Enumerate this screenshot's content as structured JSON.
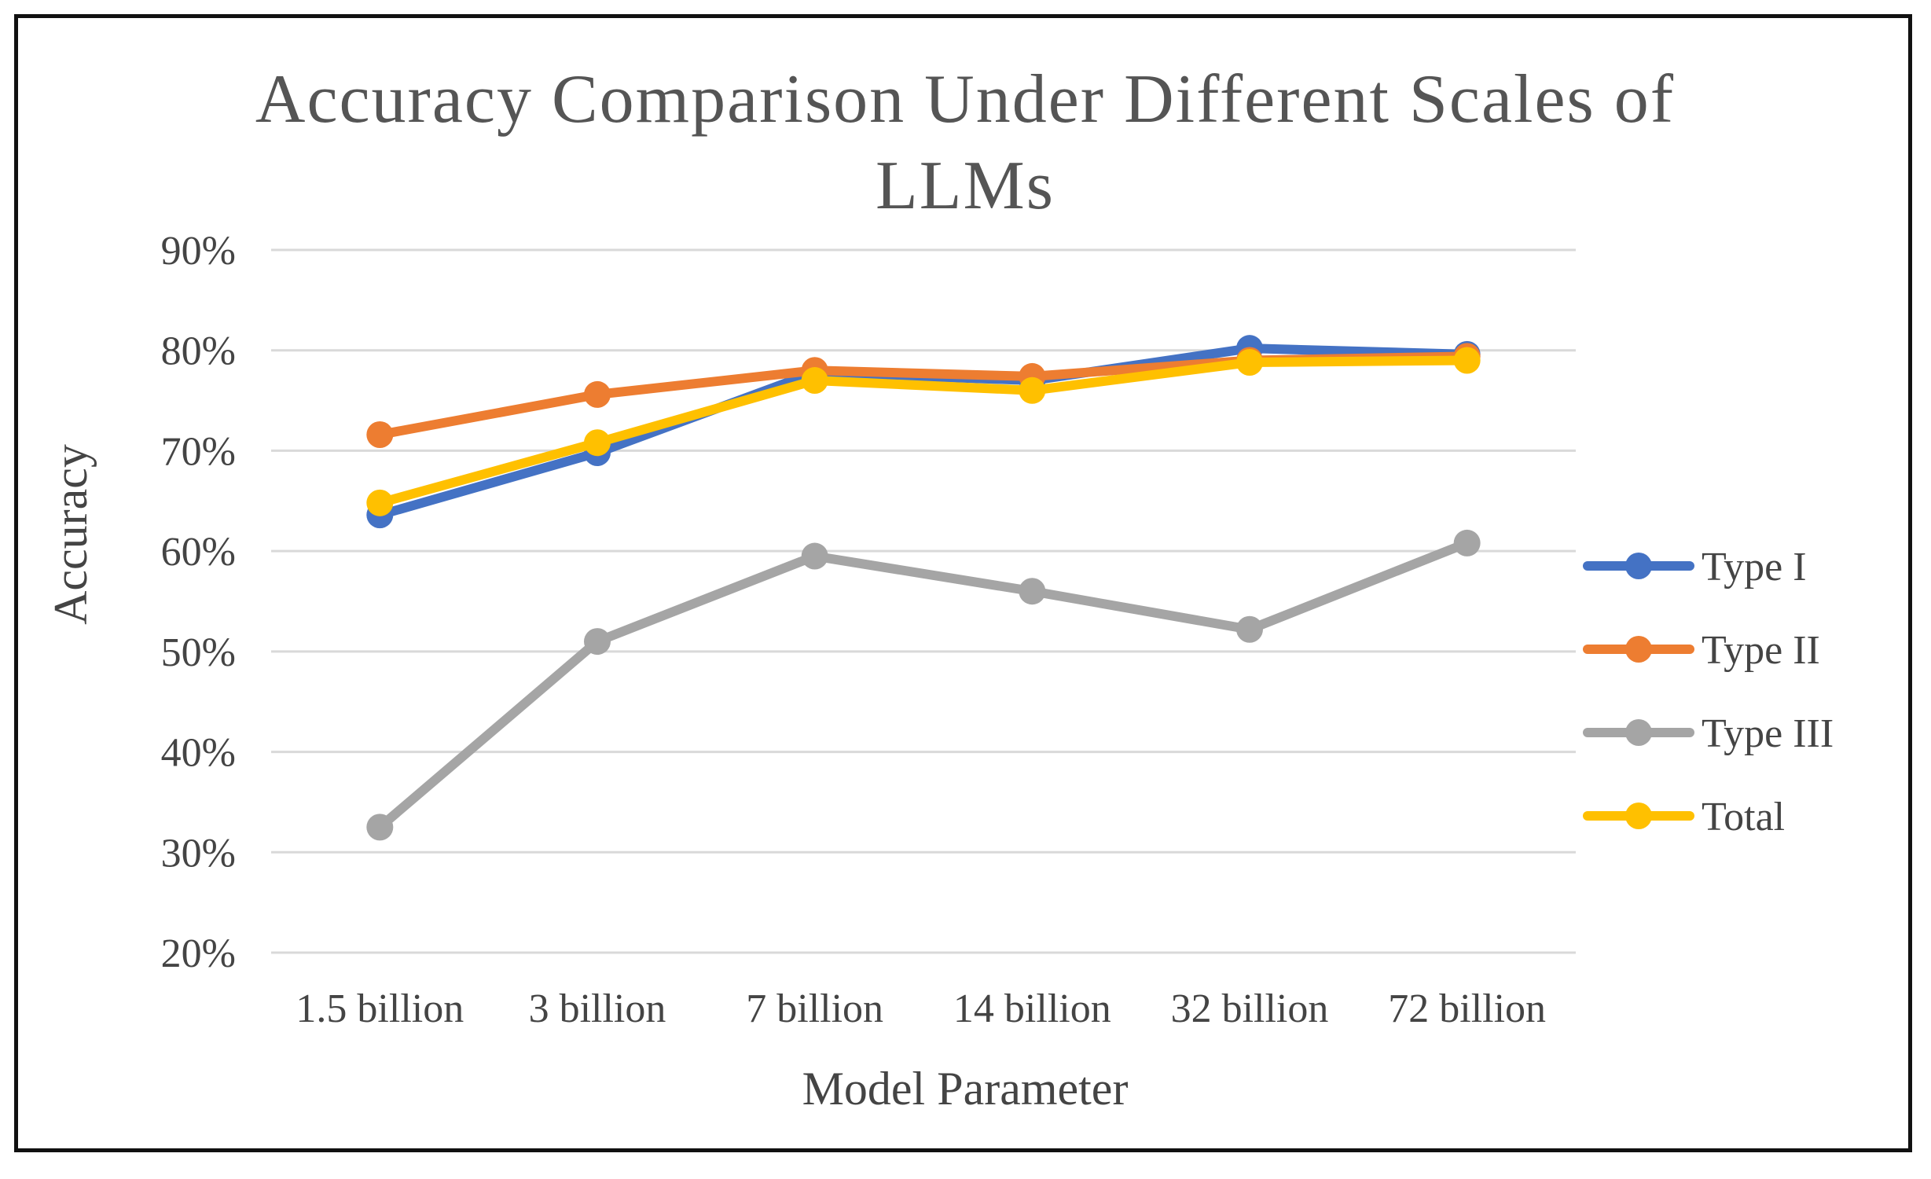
{
  "chart_data": {
    "type": "line",
    "title_lines": [
      "Accuracy  Comparison  Under  Different  Scales  of",
      "LLMs"
    ],
    "xlabel": "Model Parameter",
    "ylabel": "Accuracy",
    "categories": [
      "1.5 billion",
      "3 billion",
      "7 billion",
      "14 billion",
      "32 billion",
      "72 billion"
    ],
    "ylim": [
      20,
      90
    ],
    "yticks": [
      20,
      30,
      40,
      50,
      60,
      70,
      80,
      90
    ],
    "ytick_labels": [
      "20%",
      "30%",
      "40%",
      "50%",
      "60%",
      "70%",
      "80%",
      "90%"
    ],
    "grid": true,
    "legend_position": "right",
    "series": [
      {
        "name": "Type I",
        "color": "#4472C4",
        "values": [
          63.6,
          69.8,
          77.8,
          77.0,
          80.2,
          79.6
        ]
      },
      {
        "name": "Type II",
        "color": "#ED7D31",
        "values": [
          71.6,
          75.6,
          78.0,
          77.4,
          79.0,
          79.4
        ]
      },
      {
        "name": "Type III",
        "color": "#A5A5A5",
        "values": [
          32.5,
          51.0,
          59.5,
          56.0,
          52.2,
          60.8
        ]
      },
      {
        "name": "Total",
        "color": "#FFC000",
        "values": [
          64.8,
          70.8,
          77.0,
          76.0,
          78.8,
          79.0
        ]
      }
    ]
  }
}
